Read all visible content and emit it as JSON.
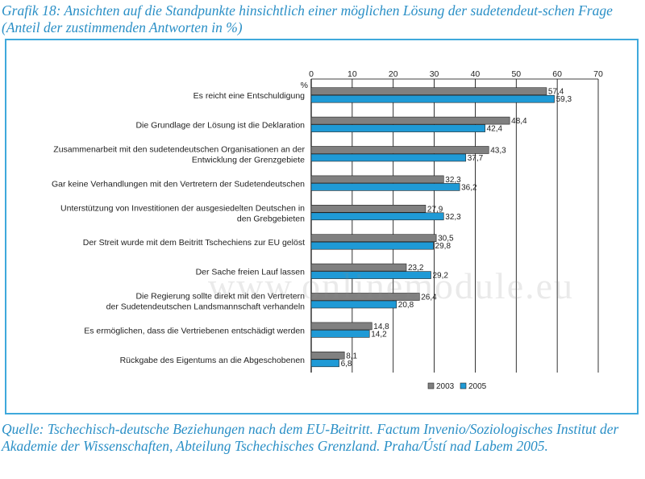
{
  "title": "Grafik 18: Ansichten auf die Standpunkte hinsichtlich einer möglichen Lösung der sudetendeut-schen Frage (Anteil der zustimmenden Antworten in %)",
  "source": "Quelle: Tschechisch-deutsche Beziehungen nach dem EU-Beitritt. Factum Invenio/Soziologisches Institut der Akademie der Wissenschaften, Abteilung Tschechisches Grenzland. Praha/Ústí nad Labem 2005.",
  "watermark": "www.onlinemodule.eu",
  "chart_data": {
    "type": "bar",
    "orientation": "horizontal",
    "unit_label": "%",
    "xlim": [
      0,
      70
    ],
    "ticks": [
      0,
      10,
      20,
      30,
      40,
      50,
      60,
      70
    ],
    "grid": true,
    "legend_position": "bottom-right",
    "categories": [
      [
        "Es reicht eine Entschuldigung"
      ],
      [
        "Die Grundlage der Lösung ist die Deklaration"
      ],
      [
        "Zusammenarbeit mit den sudetendeutschen Organisationen an der",
        "Entwicklung der Grenzgebiete"
      ],
      [
        "Gar keine Verhandlungen mit den Vertretern der Sudetendeutschen"
      ],
      [
        "Unterstützung von Investitionen der ausgesiedelten Deutschen in",
        "den Grebgebieten"
      ],
      [
        "Der Streit wurde mit dem Beitritt Tschechiens zur EU gelöst"
      ],
      [
        "Der Sache freien Lauf lassen"
      ],
      [
        "Die Regierung sollte direkt mit den Vertretern",
        "der Sudetendeutschen Landsmannschaft verhandeln"
      ],
      [
        "Es ermöglichen, dass die Vertriebenen entschädigt werden"
      ],
      [
        "Rückgabe des Eigentums an die Abgeschobenen"
      ]
    ],
    "series": [
      {
        "name": "2003",
        "color": "#808080",
        "values": [
          57.4,
          48.4,
          43.3,
          32.3,
          27.9,
          30.5,
          23.2,
          26.4,
          14.8,
          8.1
        ]
      },
      {
        "name": "2005",
        "color": "#1f9ad6",
        "values": [
          59.3,
          42.4,
          37.7,
          36.2,
          32.3,
          29.8,
          29.2,
          20.8,
          14.2,
          6.8
        ]
      }
    ]
  }
}
